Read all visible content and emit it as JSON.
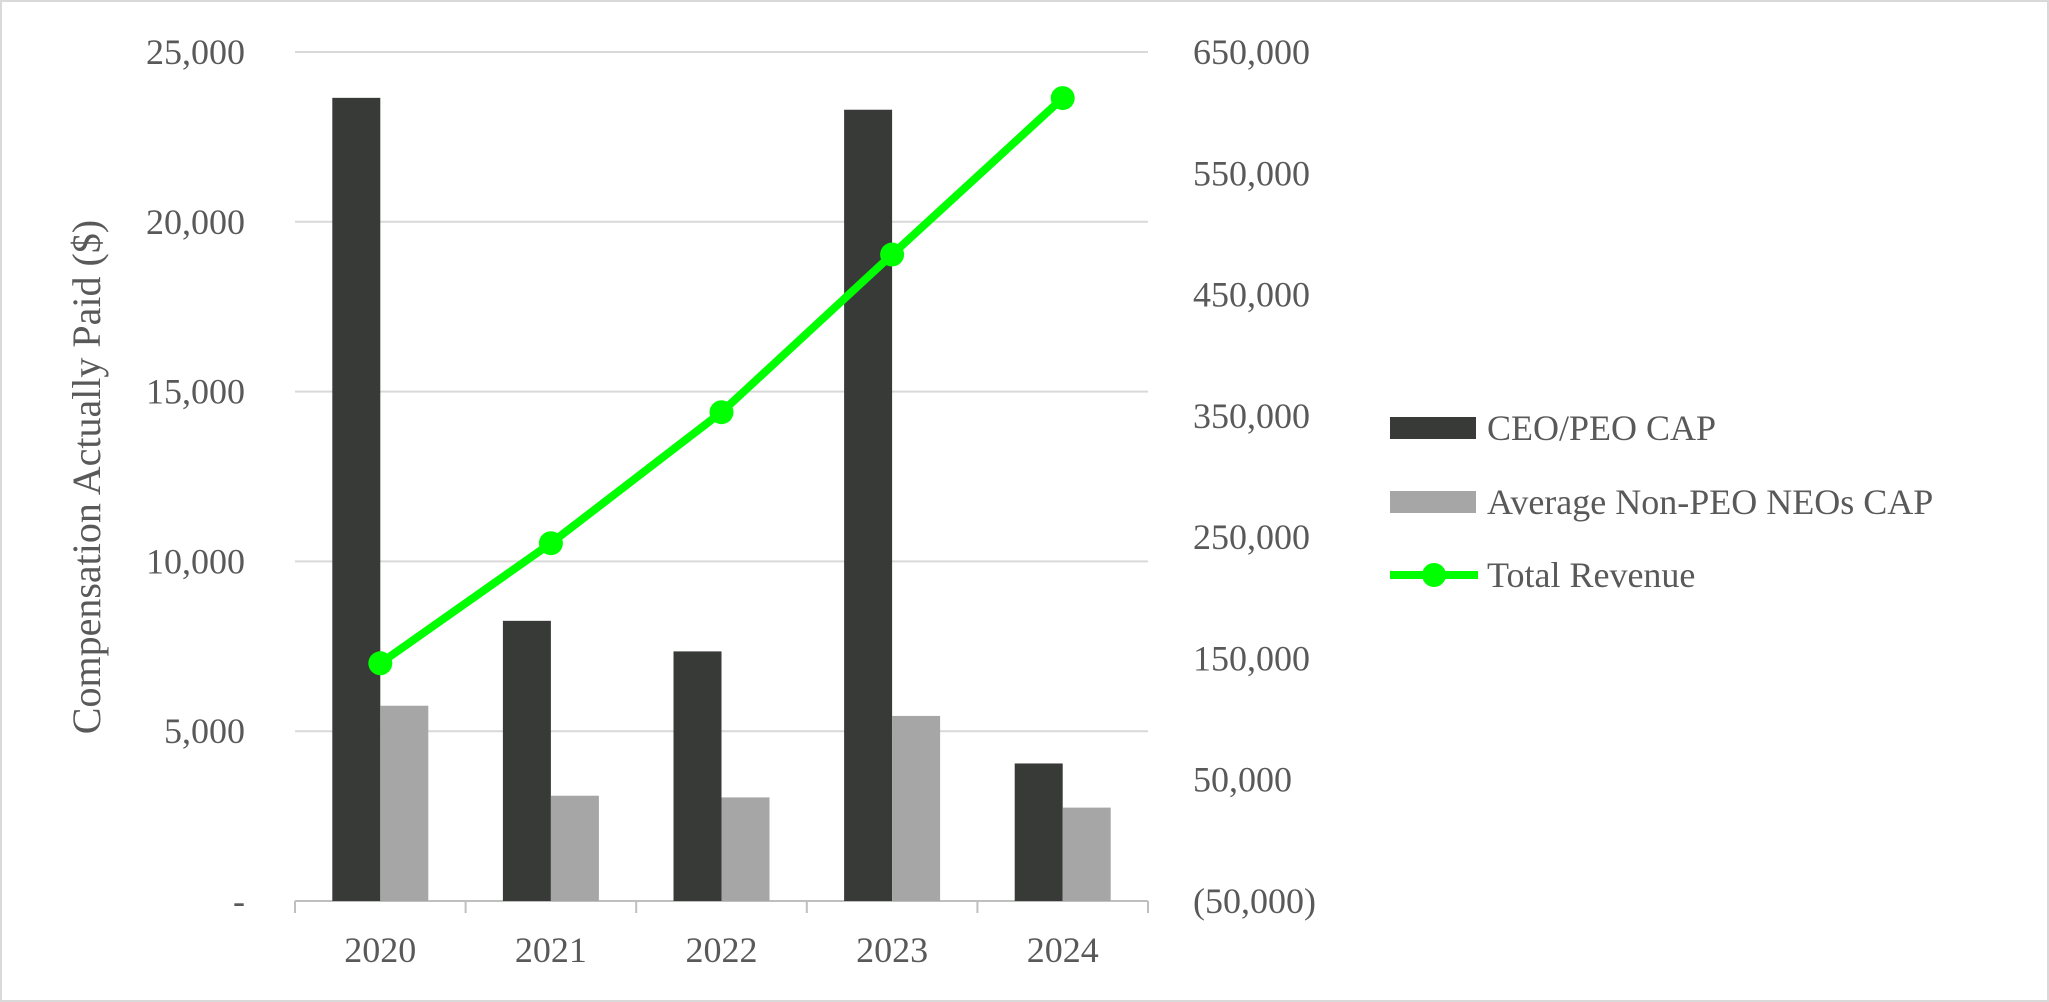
{
  "chart_data": {
    "type": "bar",
    "title": "",
    "categories": [
      "2020",
      "2021",
      "2022",
      "2023",
      "2024"
    ],
    "ylabel": "Compensation Actually Paid ($)",
    "y_ticks": [
      "-",
      "5,000",
      "10,000",
      "15,000",
      "20,000",
      "25,000"
    ],
    "ylim": [
      0,
      25000
    ],
    "y2_ticks": [
      "(50,000)",
      "50,000",
      "150,000",
      "250,000",
      "350,000",
      "450,000",
      "550,000",
      "650,000"
    ],
    "y2lim": [
      -50000,
      650000
    ],
    "grid": true,
    "legend_position": "right",
    "series": [
      {
        "name": "CEO/PEO CAP",
        "kind": "bar",
        "axis": "left",
        "color": "#383a38",
        "values": [
          23650,
          8250,
          7350,
          23300,
          4050
        ]
      },
      {
        "name": "Average Non-PEO NEOs CAP",
        "kind": "bar",
        "axis": "left",
        "color": "#a6a6a6",
        "values": [
          5750,
          3100,
          3050,
          5450,
          2750
        ]
      },
      {
        "name": "Total Revenue",
        "kind": "line",
        "axis": "right",
        "color": "#00ff00",
        "values": [
          146000,
          245000,
          353000,
          483000,
          612000
        ]
      }
    ]
  }
}
